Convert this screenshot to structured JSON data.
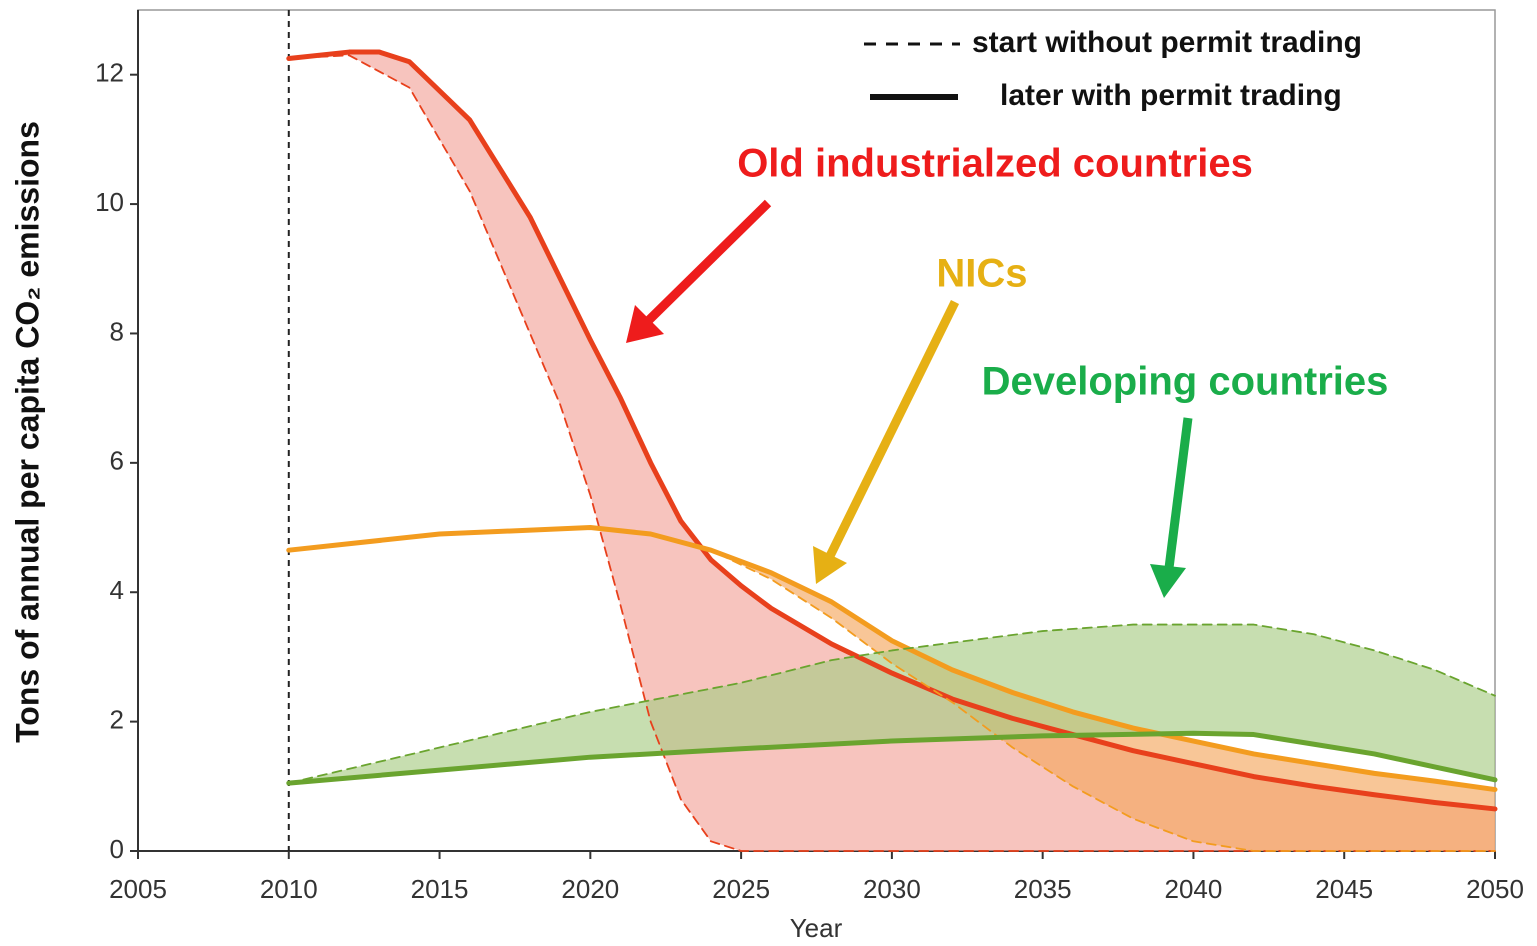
{
  "chart_data": {
    "type": "line",
    "xlabel": "Year",
    "ylabel": "Tons of annual per capita CO₂ emissions",
    "xlim": [
      2005,
      2050
    ],
    "ylim": [
      0,
      13
    ],
    "xticks": [
      2005,
      2010,
      2015,
      2020,
      2025,
      2030,
      2035,
      2040,
      2045,
      2050
    ],
    "yticks": [
      0,
      2,
      4,
      6,
      8,
      10,
      12
    ],
    "start_line_x": 2010,
    "legend": [
      {
        "label": "start without permit trading",
        "style": "dashed"
      },
      {
        "label": "later with permit trading",
        "style": "solid"
      }
    ],
    "groups": [
      {
        "name": "Old industrialzed countries",
        "color": "#e8401c",
        "label_color": "#ee1c1c",
        "fill": "#f2a49b",
        "without_trading": {
          "x": [
            2010,
            2012,
            2014,
            2016,
            2018,
            2019,
            2020,
            2021,
            2022,
            2023,
            2024,
            2025,
            2030,
            2040,
            2050
          ],
          "values": [
            12.25,
            12.3,
            11.8,
            10.2,
            8.0,
            6.9,
            5.5,
            3.8,
            2.0,
            0.8,
            0.15,
            0,
            0,
            0,
            0
          ]
        },
        "with_trading": {
          "x": [
            2010,
            2012,
            2013,
            2014,
            2016,
            2018,
            2020,
            2021,
            2022,
            2023,
            2024,
            2025,
            2026,
            2028,
            2030,
            2032,
            2034,
            2036,
            2038,
            2040,
            2042,
            2044,
            2046,
            2048,
            2050
          ],
          "values": [
            12.25,
            12.35,
            12.35,
            12.2,
            11.3,
            9.8,
            7.9,
            7.0,
            6.0,
            5.1,
            4.5,
            4.1,
            3.75,
            3.2,
            2.75,
            2.35,
            2.05,
            1.8,
            1.55,
            1.35,
            1.15,
            1.0,
            0.87,
            0.75,
            0.65
          ]
        }
      },
      {
        "name": "NICs",
        "color": "#f39c1f",
        "label_color": "#e6b014",
        "fill": "#f5a860",
        "without_trading": {
          "x": [
            2010,
            2015,
            2020,
            2022,
            2024,
            2026,
            2028,
            2030,
            2032,
            2034,
            2036,
            2038,
            2040,
            2042,
            2050
          ],
          "values": [
            4.65,
            4.9,
            5.0,
            4.9,
            4.65,
            4.2,
            3.6,
            2.9,
            2.3,
            1.6,
            1.0,
            0.5,
            0.15,
            0,
            0
          ]
        },
        "with_trading": {
          "x": [
            2010,
            2015,
            2020,
            2022,
            2024,
            2026,
            2028,
            2030,
            2032,
            2034,
            2036,
            2038,
            2040,
            2042,
            2044,
            2046,
            2048,
            2050
          ],
          "values": [
            4.65,
            4.9,
            5.0,
            4.9,
            4.65,
            4.3,
            3.85,
            3.25,
            2.8,
            2.45,
            2.15,
            1.9,
            1.7,
            1.5,
            1.35,
            1.2,
            1.08,
            0.95
          ]
        }
      },
      {
        "name": "Developing countries",
        "color": "#6aa42f",
        "label_color": "#1aad4a",
        "fill": "#a9cc85",
        "without_trading": {
          "x": [
            2010,
            2015,
            2020,
            2025,
            2028,
            2030,
            2035,
            2038,
            2040,
            2042,
            2044,
            2046,
            2048,
            2050
          ],
          "values": [
            1.05,
            1.6,
            2.15,
            2.6,
            2.95,
            3.1,
            3.4,
            3.5,
            3.5,
            3.5,
            3.35,
            3.1,
            2.8,
            2.4
          ]
        },
        "with_trading": {
          "x": [
            2010,
            2015,
            2020,
            2025,
            2030,
            2035,
            2040,
            2042,
            2044,
            2046,
            2048,
            2050
          ],
          "values": [
            1.05,
            1.25,
            1.45,
            1.58,
            1.7,
            1.78,
            1.82,
            1.8,
            1.65,
            1.5,
            1.3,
            1.1
          ]
        }
      }
    ]
  }
}
